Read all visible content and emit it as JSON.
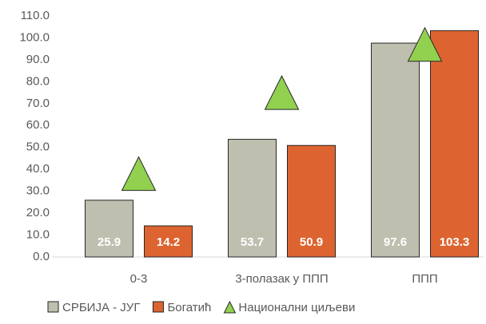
{
  "chart_data": {
    "type": "bar",
    "categories": [
      "0-3",
      "3-полазак у ППП",
      "ППП"
    ],
    "series": [
      {
        "name": "СРБИЈА - ЈУГ",
        "color": "#bfbfb0",
        "values": [
          25.9,
          53.7,
          97.6
        ]
      },
      {
        "name": "Богатић",
        "color": "#dd6430",
        "values": [
          14.2,
          50.9,
          103.3
        ]
      },
      {
        "name": "Национални циљеви",
        "color": "#92d050",
        "type": "marker",
        "values": [
          38,
          75,
          97
        ]
      }
    ],
    "ylim": [
      0,
      110
    ],
    "yticks": [
      {
        "value": 0,
        "label": "0.0"
      },
      {
        "value": 10,
        "label": "10.0"
      },
      {
        "value": 20,
        "label": "20.0"
      },
      {
        "value": 30,
        "label": "30.0"
      },
      {
        "value": 40,
        "label": "40.0"
      },
      {
        "value": 50,
        "label": "50.0"
      },
      {
        "value": 60,
        "label": "60.0"
      },
      {
        "value": 70,
        "label": "70.0"
      },
      {
        "value": 80,
        "label": "80.0"
      },
      {
        "value": 90,
        "label": "90.0"
      },
      {
        "value": 100,
        "label": "100.0"
      },
      {
        "value": 110,
        "label": "110.0"
      }
    ],
    "grid": false
  }
}
